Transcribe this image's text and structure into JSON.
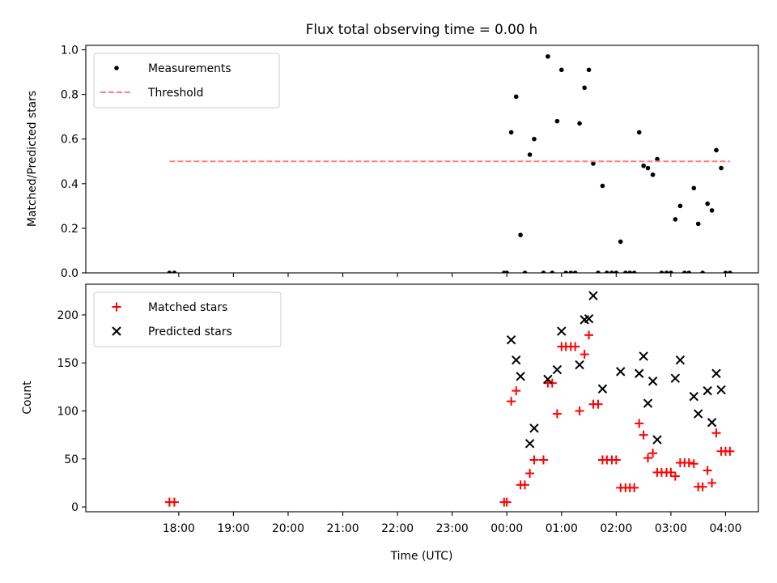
{
  "chart_data": {
    "title": "Flux total observing time = 0.00 h",
    "xlabel": "Time (UTC)",
    "x_unit": "hours relative to 00:00 UTC (negative = previous evening)",
    "xlim": [
      -7.7,
      4.6
    ],
    "xticks": [
      {
        "value": -6,
        "label": "18:00"
      },
      {
        "value": -5,
        "label": "19:00"
      },
      {
        "value": -4,
        "label": "20:00"
      },
      {
        "value": -3,
        "label": "21:00"
      },
      {
        "value": -2,
        "label": "22:00"
      },
      {
        "value": -1,
        "label": "23:00"
      },
      {
        "value": 0,
        "label": "00:00"
      },
      {
        "value": 1,
        "label": "01:00"
      },
      {
        "value": 2,
        "label": "02:00"
      },
      {
        "value": 3,
        "label": "03:00"
      },
      {
        "value": 4,
        "label": "04:00"
      }
    ],
    "panels": [
      {
        "type": "scatter",
        "ylabel": "Matched/Predicted stars",
        "ylim": [
          0,
          1.02
        ],
        "yticks": [
          {
            "value": 0,
            "label": "0.0"
          },
          {
            "value": 0.2,
            "label": "0.2"
          },
          {
            "value": 0.4,
            "label": "0.4"
          },
          {
            "value": 0.6,
            "label": "0.6"
          },
          {
            "value": 0.8,
            "label": "0.8"
          },
          {
            "value": 1.0,
            "label": "1.0"
          }
        ],
        "legend_position": "top-left",
        "series": [
          {
            "name": "Measurements",
            "marker": "dot",
            "color": "#000000",
            "points": [
              [
                -6.17,
                0.0
              ],
              [
                -6.08,
                0.0
              ],
              [
                -0.05,
                0.0
              ],
              [
                0.0,
                0.0
              ],
              [
                0.08,
                0.63
              ],
              [
                0.17,
                0.79
              ],
              [
                0.25,
                0.17
              ],
              [
                0.33,
                0.0
              ],
              [
                0.42,
                0.53
              ],
              [
                0.5,
                0.6
              ],
              [
                0.67,
                0.0
              ],
              [
                0.75,
                0.97
              ],
              [
                0.83,
                0.0
              ],
              [
                0.92,
                0.68
              ],
              [
                1.0,
                0.91
              ],
              [
                1.08,
                0.0
              ],
              [
                1.17,
                0.0
              ],
              [
                1.25,
                0.0
              ],
              [
                1.33,
                0.67
              ],
              [
                1.42,
                0.83
              ],
              [
                1.5,
                0.91
              ],
              [
                1.58,
                0.49
              ],
              [
                1.67,
                0.0
              ],
              [
                1.75,
                0.39
              ],
              [
                1.83,
                0.0
              ],
              [
                1.92,
                0.0
              ],
              [
                2.0,
                0.0
              ],
              [
                2.08,
                0.14
              ],
              [
                2.17,
                0.0
              ],
              [
                2.25,
                0.0
              ],
              [
                2.33,
                0.0
              ],
              [
                2.42,
                0.63
              ],
              [
                2.5,
                0.48
              ],
              [
                2.58,
                0.47
              ],
              [
                2.67,
                0.44
              ],
              [
                2.75,
                0.51
              ],
              [
                2.83,
                0.0
              ],
              [
                2.92,
                0.0
              ],
              [
                3.0,
                0.0
              ],
              [
                3.08,
                0.24
              ],
              [
                3.17,
                0.3
              ],
              [
                3.25,
                0.0
              ],
              [
                3.33,
                0.0
              ],
              [
                3.42,
                0.38
              ],
              [
                3.5,
                0.22
              ],
              [
                3.58,
                0.0
              ],
              [
                3.67,
                0.31
              ],
              [
                3.75,
                0.28
              ],
              [
                3.83,
                0.55
              ],
              [
                3.92,
                0.47
              ],
              [
                4.0,
                0.0
              ],
              [
                4.08,
                0.0
              ]
            ]
          },
          {
            "name": "Threshold",
            "marker": "dashed-line",
            "color": "#ff7f7f",
            "x": [
              -6.17,
              4.08
            ],
            "y": [
              0.5,
              0.5
            ]
          }
        ]
      },
      {
        "type": "scatter",
        "ylabel": "Count",
        "ylim": [
          -5,
          232
        ],
        "yticks": [
          {
            "value": 0,
            "label": "0"
          },
          {
            "value": 50,
            "label": "50"
          },
          {
            "value": 100,
            "label": "100"
          },
          {
            "value": 150,
            "label": "150"
          },
          {
            "value": 200,
            "label": "200"
          }
        ],
        "legend_position": "top-left",
        "series": [
          {
            "name": "Matched stars",
            "marker": "plus",
            "color": "#ff0000",
            "points": [
              [
                -6.17,
                5
              ],
              [
                -6.08,
                5
              ],
              [
                -0.05,
                5
              ],
              [
                0.0,
                5
              ],
              [
                0.08,
                110
              ],
              [
                0.17,
                121
              ],
              [
                0.25,
                23
              ],
              [
                0.33,
                23
              ],
              [
                0.42,
                35
              ],
              [
                0.5,
                49
              ],
              [
                0.67,
                49
              ],
              [
                0.75,
                129
              ],
              [
                0.83,
                129
              ],
              [
                0.92,
                97
              ],
              [
                1.0,
                167
              ],
              [
                1.08,
                167
              ],
              [
                1.17,
                167
              ],
              [
                1.25,
                167
              ],
              [
                1.33,
                100
              ],
              [
                1.42,
                159
              ],
              [
                1.5,
                179
              ],
              [
                1.58,
                107
              ],
              [
                1.67,
                107
              ],
              [
                1.75,
                49
              ],
              [
                1.83,
                49
              ],
              [
                1.92,
                49
              ],
              [
                2.0,
                49
              ],
              [
                2.08,
                20
              ],
              [
                2.17,
                20
              ],
              [
                2.25,
                20
              ],
              [
                2.33,
                20
              ],
              [
                2.42,
                87
              ],
              [
                2.5,
                75
              ],
              [
                2.58,
                51
              ],
              [
                2.67,
                56
              ],
              [
                2.75,
                36
              ],
              [
                2.83,
                36
              ],
              [
                2.92,
                36
              ],
              [
                3.0,
                36
              ],
              [
                3.08,
                32
              ],
              [
                3.17,
                46
              ],
              [
                3.25,
                46
              ],
              [
                3.33,
                46
              ],
              [
                3.42,
                45
              ],
              [
                3.5,
                21
              ],
              [
                3.58,
                21
              ],
              [
                3.67,
                38
              ],
              [
                3.75,
                25
              ],
              [
                3.83,
                77
              ],
              [
                3.92,
                58
              ],
              [
                4.0,
                58
              ],
              [
                4.08,
                58
              ]
            ]
          },
          {
            "name": "Predicted stars",
            "marker": "x",
            "color": "#000000",
            "points": [
              [
                0.08,
                174
              ],
              [
                0.17,
                153
              ],
              [
                0.25,
                136
              ],
              [
                0.42,
                66
              ],
              [
                0.5,
                82
              ],
              [
                0.75,
                133
              ],
              [
                0.92,
                143
              ],
              [
                1.0,
                183
              ],
              [
                1.33,
                148
              ],
              [
                1.42,
                195
              ],
              [
                1.5,
                196
              ],
              [
                1.58,
                220
              ],
              [
                1.75,
                123
              ],
              [
                2.08,
                141
              ],
              [
                2.42,
                139
              ],
              [
                2.5,
                157
              ],
              [
                2.58,
                108
              ],
              [
                2.67,
                131
              ],
              [
                2.75,
                70
              ],
              [
                3.08,
                134
              ],
              [
                3.17,
                153
              ],
              [
                3.42,
                115
              ],
              [
                3.5,
                97
              ],
              [
                3.67,
                121
              ],
              [
                3.75,
                88
              ],
              [
                3.83,
                139
              ],
              [
                3.92,
                122
              ]
            ]
          }
        ]
      }
    ]
  }
}
